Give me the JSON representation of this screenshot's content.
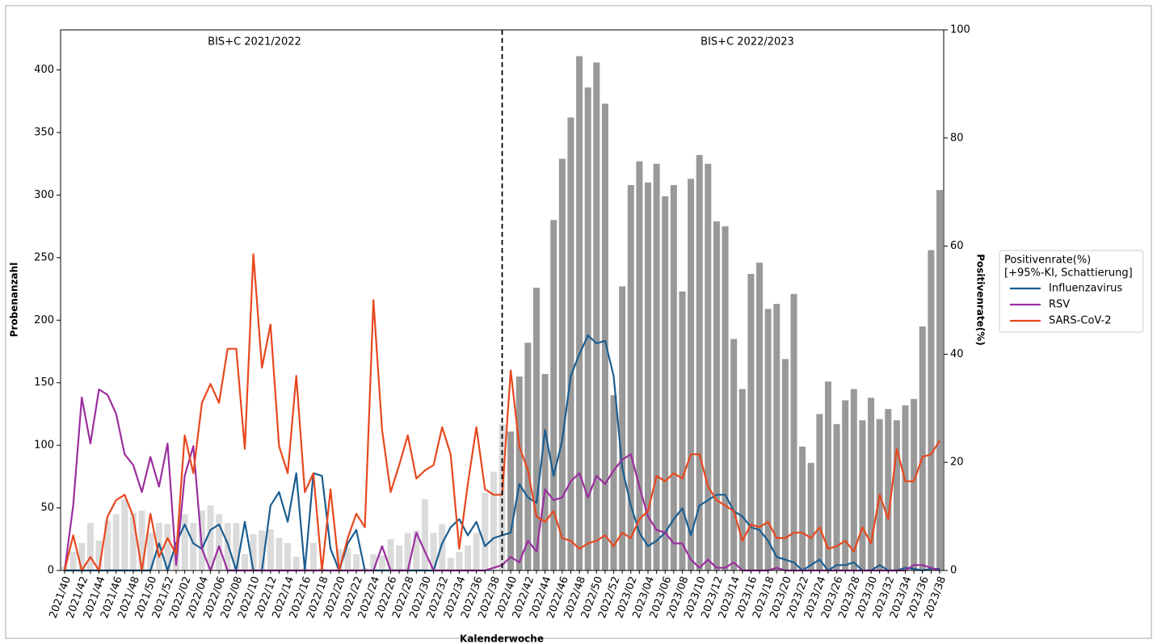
{
  "chart_data": {
    "type": "combo",
    "annotations": [
      "BIS+C 2021/2022",
      "BIS+C 2022/2023"
    ],
    "x_label": "Kalenderwoche",
    "y_label": "Probenanzahl",
    "y2_label": "Positivenrate(%)",
    "legend_title": [
      "Positivenrate(%)",
      "[+95%-KI, Schattierung]"
    ],
    "categories": [
      "2021/40",
      null,
      "2021/42",
      null,
      "2021/44",
      null,
      "2021/46",
      null,
      "2021/48",
      null,
      "2021/50",
      null,
      "2021/52",
      null,
      "2022/02",
      null,
      "2022/04",
      null,
      "2022/06",
      null,
      "2022/08",
      null,
      "2022/10",
      null,
      "2022/12",
      null,
      "2022/14",
      null,
      "2022/16",
      null,
      "2022/18",
      null,
      "2022/20",
      null,
      "2022/22",
      null,
      "2022/24",
      null,
      "2022/26",
      null,
      "2022/28",
      null,
      "2022/30",
      null,
      "2022/32",
      null,
      "2022/34",
      null,
      "2022/36",
      null,
      "2022/38",
      null,
      "2022/40",
      null,
      "2022/42",
      null,
      "2022/44",
      null,
      "2022/46",
      null,
      "2022/48",
      null,
      "2022/50",
      null,
      "2022/52",
      null,
      "2023/02",
      null,
      "2023/04",
      null,
      "2023/06",
      null,
      "2023/08",
      null,
      "2023/10",
      null,
      "2023/12",
      null,
      "2023/14",
      null,
      "2023/16",
      null,
      "2023/18",
      null,
      "2023/20",
      null,
      "2023/22",
      null,
      "2023/24",
      null,
      "2023/26",
      null,
      "2023/28",
      null,
      "2023/30",
      null,
      "2023/32",
      null,
      "2023/34",
      null,
      "2023/36",
      null,
      "2023/38"
    ],
    "bar_color": "#999999",
    "bar_values": [
      3,
      15,
      22,
      38,
      24,
      40,
      45,
      57,
      46,
      48,
      30,
      38,
      37,
      20,
      45,
      38,
      48,
      52,
      45,
      38,
      38,
      13,
      29,
      32,
      33,
      26,
      22,
      11,
      2,
      22,
      2,
      1,
      17,
      18,
      13,
      2,
      13,
      12,
      25,
      20,
      30,
      32,
      57,
      30,
      37,
      10,
      15,
      20,
      30,
      62,
      79,
      117,
      111,
      155,
      182,
      226,
      157,
      280,
      329,
      362,
      411,
      386,
      406,
      373,
      140,
      227,
      308,
      327,
      310,
      325,
      299,
      308,
      223,
      313,
      332,
      325,
      279,
      275,
      185,
      145,
      237,
      246,
      209,
      213,
      169,
      221,
      99,
      86,
      125,
      151,
      117,
      136,
      145,
      120,
      138,
      121,
      129,
      120,
      132,
      137,
      195,
      256,
      304
    ],
    "series": [
      {
        "name": "Influenzavirus",
        "color": "#1a5e91",
        "axis": "y2",
        "values": [
          0,
          0,
          0,
          0,
          0,
          0,
          0,
          0,
          0,
          0,
          0,
          5,
          0,
          5,
          8.5,
          5,
          4,
          7.5,
          8.5,
          5,
          0,
          9,
          0,
          0,
          12,
          14.5,
          9,
          18,
          0,
          18,
          17.5,
          4,
          0,
          5,
          7.5,
          0,
          0,
          0,
          0,
          0,
          0,
          0,
          0,
          0,
          5,
          8,
          9.5,
          6.5,
          9,
          4.5,
          6,
          6.5,
          7,
          16,
          13.5,
          12.5,
          26,
          17.5,
          24,
          36,
          40,
          43.5,
          42,
          42.5,
          36,
          19,
          12,
          7,
          4.5,
          5.5,
          7,
          9.5,
          11.5,
          6.5,
          12,
          13,
          14,
          14,
          11,
          10,
          8,
          7.5,
          5.5,
          2.5,
          2,
          1.5,
          0,
          1,
          2,
          0,
          1,
          1,
          1.5,
          0,
          0,
          1,
          0,
          0,
          0.5,
          0.3,
          0,
          0.3,
          0.3
        ]
      },
      {
        "name": "RSV",
        "color": "#9b2e9f",
        "axis": "y2",
        "values": [
          0,
          12,
          32,
          23.5,
          33.5,
          32.5,
          29,
          21.5,
          19.5,
          14.5,
          21,
          15.5,
          23.5,
          1,
          17.5,
          23,
          4,
          0,
          4.5,
          0,
          0,
          0,
          0,
          0,
          0,
          0,
          0,
          0,
          0,
          0,
          0,
          0,
          0,
          0,
          0,
          0,
          0,
          4.5,
          0,
          0,
          0,
          7,
          3.5,
          0,
          0,
          0,
          0,
          0,
          0,
          0,
          0.5,
          1,
          2.5,
          1.5,
          5.5,
          3.5,
          15,
          13,
          13.5,
          16.5,
          18,
          13.5,
          17.5,
          16,
          18.5,
          20.5,
          21.5,
          15.5,
          10,
          7.5,
          7,
          5,
          5,
          2,
          0.5,
          2,
          0.5,
          0.5,
          1.5,
          0,
          0,
          0,
          0,
          0.5,
          0,
          0,
          0,
          0,
          0,
          0,
          0,
          0,
          0,
          0,
          0,
          0,
          0,
          0,
          0,
          1,
          1,
          0.5,
          0
        ]
      },
      {
        "name": "SARS-CoV-2",
        "color": "#e8471e",
        "axis": "y2",
        "values": [
          0,
          6.5,
          0,
          2.5,
          0,
          10,
          13,
          14,
          10,
          0,
          10.5,
          2.5,
          6,
          3,
          25,
          18,
          31,
          34.5,
          31,
          41,
          41,
          22.5,
          58.5,
          37.5,
          45.5,
          23,
          18,
          36,
          14.5,
          18,
          0,
          15,
          0,
          6,
          10.5,
          8,
          50,
          26,
          14.5,
          19.5,
          25,
          17,
          18.5,
          19.5,
          26.5,
          21.5,
          4,
          16,
          26.5,
          15,
          14,
          14,
          37,
          23,
          18.5,
          10,
          9,
          11,
          6,
          5.5,
          4,
          5,
          5.5,
          6.5,
          4.5,
          7,
          6,
          9.5,
          11,
          17.5,
          16.5,
          18,
          17,
          21.5,
          21.5,
          15.5,
          13,
          12,
          11,
          5.5,
          8.5,
          8,
          9,
          6,
          6,
          7,
          7,
          6,
          8,
          4,
          4.5,
          5.5,
          3.5,
          8,
          5,
          14,
          9.5,
          22.5,
          16.5,
          16.5,
          21,
          21.5,
          24
        ]
      }
    ],
    "ylim": [
      0,
      432
    ],
    "yticks": [
      0,
      50,
      100,
      150,
      200,
      250,
      300,
      350,
      400
    ],
    "y2lim": [
      0,
      100
    ],
    "y2ticks": [
      0,
      20,
      40,
      60,
      80,
      100
    ]
  }
}
